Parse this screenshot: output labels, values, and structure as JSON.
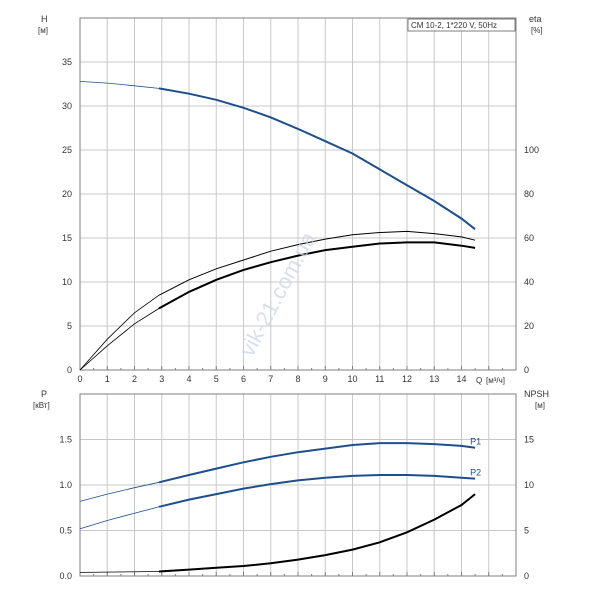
{
  "colors": {
    "head_curve": "#1f4e8c",
    "eta_curve": "#000000",
    "power_curve": "#1f4e8c",
    "npsh_curve": "#000000",
    "grid": "#c8c8c8",
    "frame": "#7f7f7f",
    "text": "#333333",
    "watermark": "#cdd6e4"
  },
  "watermark": "vik-21.com.ua",
  "chart_data": [
    {
      "type": "line",
      "panel": "top",
      "legend": "CM 10-2, 1*220 V, 50Hz",
      "legend_position": "top-right",
      "y_label": "H",
      "y_unit": "[м]",
      "y2_label": "eta",
      "y2_unit": "[%]",
      "x_unit": "Q [м³/ч]",
      "x_label": "Q",
      "x_unit_bracket": "[м³/ч]",
      "xlim": [
        0,
        16
      ],
      "ylim": [
        0,
        40
      ],
      "y2lim": [
        0,
        160
      ],
      "grid": true,
      "x_ticks": [
        "0",
        "1",
        "2",
        "3",
        "4",
        "5",
        "6",
        "7",
        "8",
        "9",
        "10",
        "11",
        "12",
        "13",
        "14"
      ],
      "y_ticks": [
        "0",
        "5",
        "10",
        "15",
        "20",
        "25",
        "30",
        "35"
      ],
      "y2_ticks": [
        "0",
        "20",
        "40",
        "60",
        "80",
        "100"
      ],
      "series": [
        {
          "x": [
            0,
            1,
            2,
            2.9,
            4,
            5,
            6,
            7,
            8,
            9,
            10,
            11,
            12,
            13,
            14,
            14.5
          ],
          "y": [
            32.8,
            32.6,
            32.3,
            32.0,
            31.4,
            30.7,
            29.8,
            28.7,
            27.4,
            26.0,
            24.6,
            22.8,
            21.0,
            19.2,
            17.2,
            16.0
          ],
          "color": "#1f4e8c",
          "axis": "y",
          "op_from": 2.9
        },
        {
          "x": [
            0,
            1,
            2,
            2.9,
            4,
            5,
            6,
            7,
            8,
            9,
            10,
            11,
            12,
            13,
            14,
            14.5
          ],
          "y": [
            0,
            11,
            21,
            28,
            35.5,
            41,
            45.5,
            49,
            52,
            54.5,
            56,
            57.5,
            58,
            58,
            56.5,
            55.5
          ],
          "color": "#000000",
          "axis": "y2",
          "op_from": 2.9
        },
        {
          "x": [
            0,
            1,
            2,
            2.9,
            4,
            5,
            6,
            7,
            8,
            9,
            10,
            11,
            12,
            13,
            14,
            14.5
          ],
          "y": [
            0,
            14,
            26,
            34,
            41,
            46,
            50,
            54,
            57,
            59.5,
            61.5,
            62.5,
            63,
            62,
            60.5,
            59
          ],
          "color": "#000000",
          "axis": "y2",
          "op_from": 2.9,
          "thin": true
        }
      ]
    },
    {
      "type": "line",
      "panel": "bottom",
      "y_label": "P",
      "y_unit": "[кВт]",
      "y2_label": "NPSH",
      "y2_unit": "[м]",
      "xlim": [
        0,
        16
      ],
      "ylim": [
        0,
        2.0
      ],
      "y2lim": [
        0,
        20
      ],
      "grid": true,
      "y_ticks": [
        "0.0",
        "0.5",
        "1.0",
        "1.5"
      ],
      "y2_ticks": [
        "0",
        "5",
        "10",
        "15"
      ],
      "series": [
        {
          "name": "P1",
          "x": [
            0,
            1,
            2,
            2.9,
            4,
            5,
            6,
            7,
            8,
            9,
            10,
            11,
            12,
            13,
            14,
            14.5
          ],
          "y": [
            0.82,
            0.9,
            0.97,
            1.03,
            1.11,
            1.18,
            1.25,
            1.31,
            1.36,
            1.4,
            1.44,
            1.46,
            1.46,
            1.45,
            1.43,
            1.41
          ],
          "color": "#1f4e8c",
          "axis": "y",
          "op_from": 2.9
        },
        {
          "name": "P2",
          "x": [
            0,
            1,
            2,
            2.9,
            4,
            5,
            6,
            7,
            8,
            9,
            10,
            11,
            12,
            13,
            14,
            14.5
          ],
          "y": [
            0.52,
            0.61,
            0.69,
            0.76,
            0.84,
            0.9,
            0.96,
            1.01,
            1.05,
            1.08,
            1.1,
            1.11,
            1.11,
            1.1,
            1.08,
            1.07
          ],
          "color": "#1f4e8c",
          "axis": "y",
          "op_from": 2.9
        },
        {
          "x": [
            0,
            2.9,
            4,
            5,
            6,
            7,
            8,
            9,
            10,
            11,
            12,
            13,
            14,
            14.5
          ],
          "y": [
            0.4,
            0.5,
            0.7,
            0.9,
            1.1,
            1.4,
            1.8,
            2.3,
            2.9,
            3.7,
            4.8,
            6.2,
            7.8,
            9.0
          ],
          "color": "#000000",
          "axis": "y2",
          "op_from": 2.9
        }
      ]
    }
  ]
}
